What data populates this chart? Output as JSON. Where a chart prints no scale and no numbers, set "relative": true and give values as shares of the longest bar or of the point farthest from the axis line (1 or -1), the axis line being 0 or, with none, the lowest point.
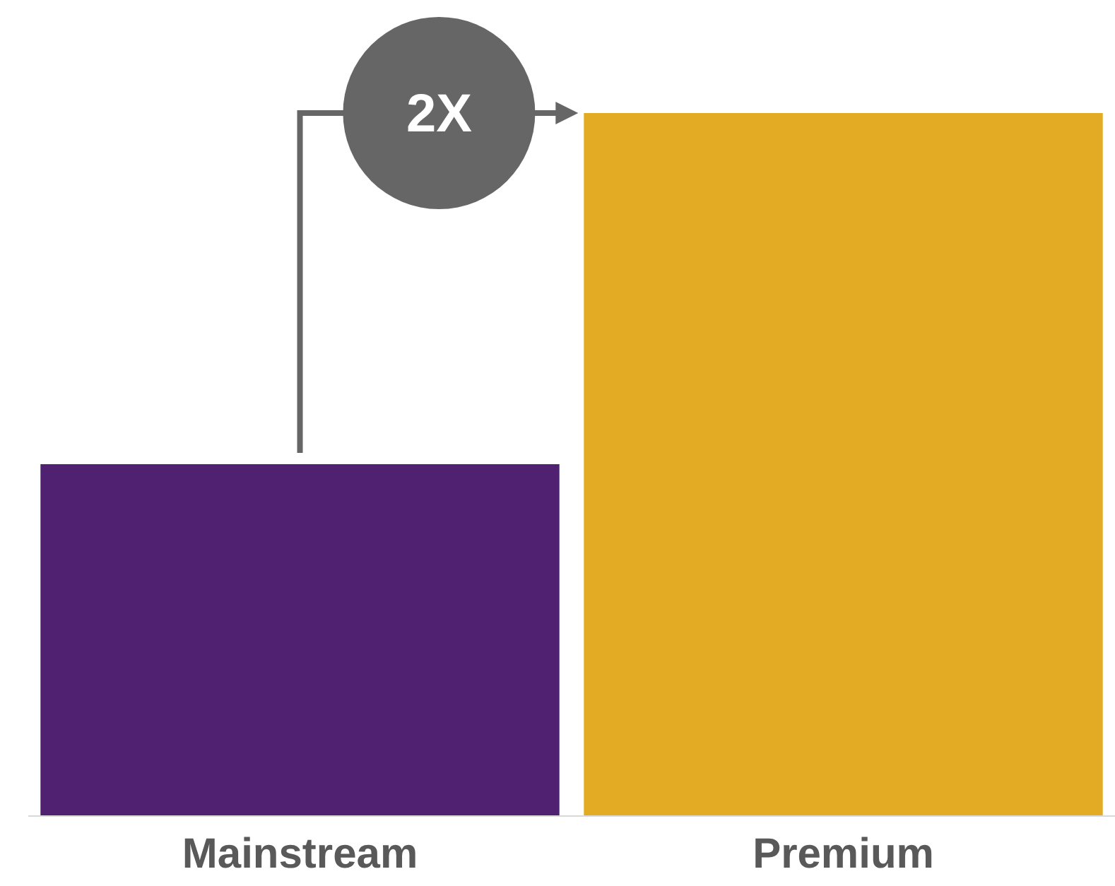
{
  "chart_data": {
    "type": "bar",
    "relative": true,
    "categories": [
      "Mainstream",
      "Premium"
    ],
    "values": [
      0.5,
      1
    ],
    "colors": [
      "#4f2170",
      "#e3ab24"
    ],
    "annotations": [
      "2X"
    ]
  }
}
